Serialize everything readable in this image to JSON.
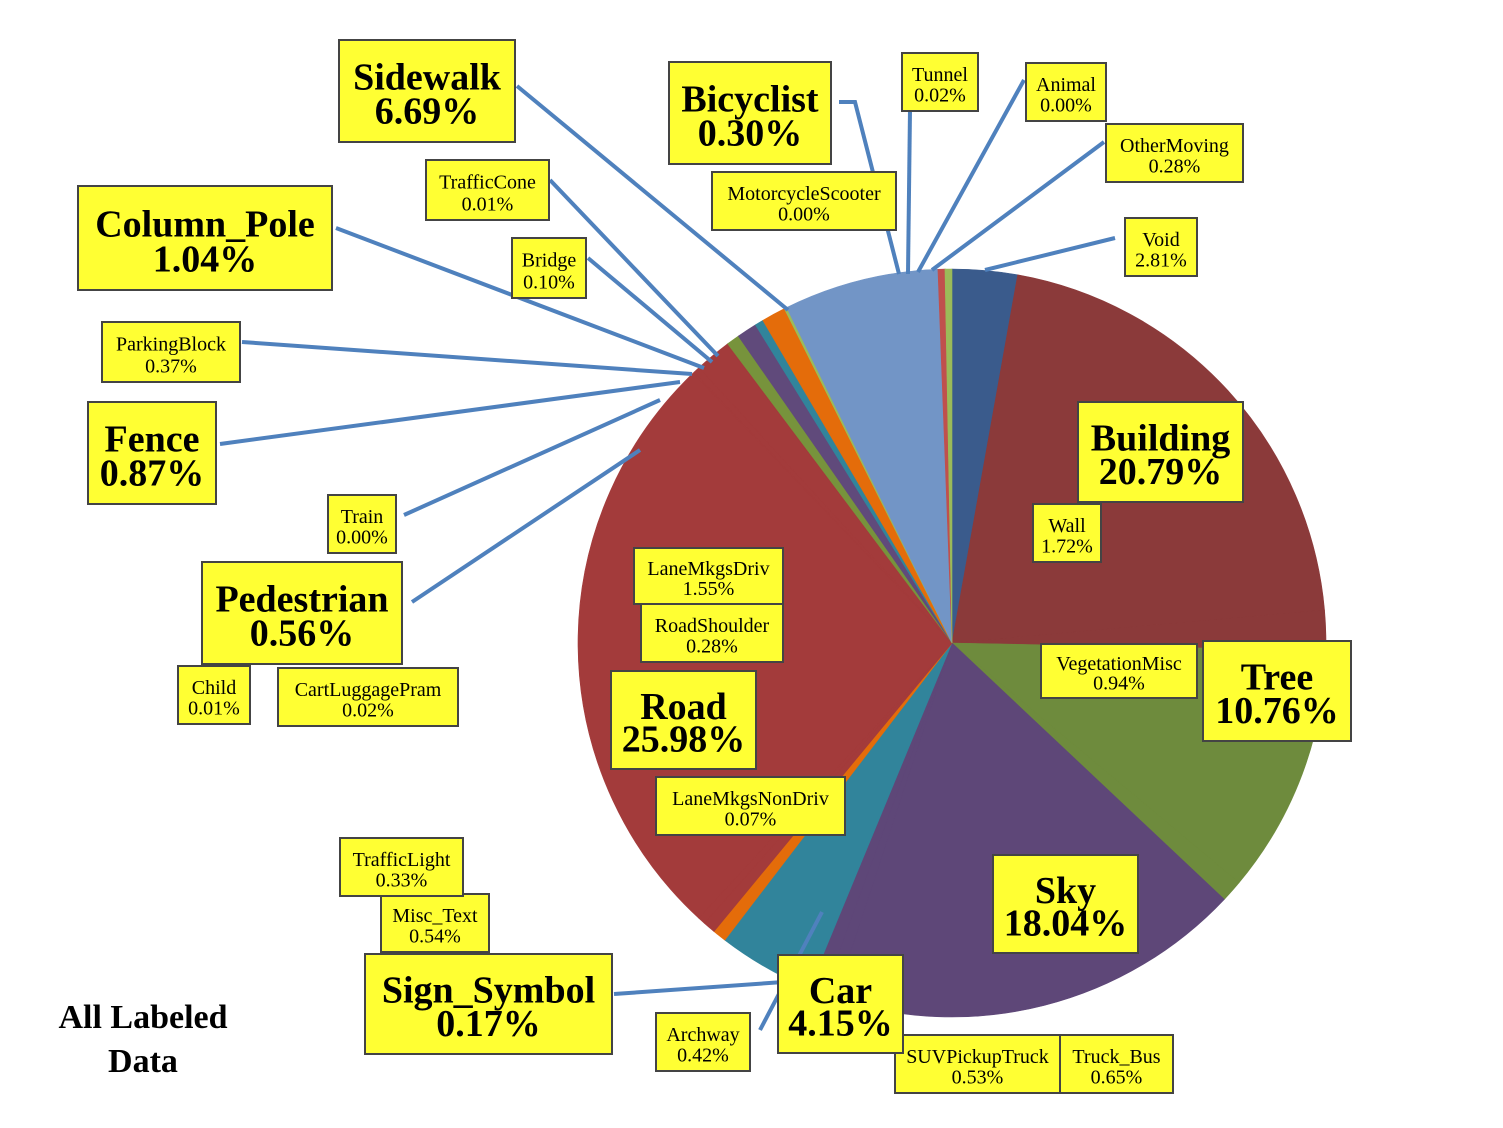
{
  "chart_data": {
    "type": "pie",
    "title": "",
    "caption_lines": [
      "All Labeled",
      "Data"
    ],
    "label_fill": "#ffff33",
    "leader_color": "#4f81bd",
    "slices": [
      {
        "name": "Void",
        "value": 2.81,
        "pct_label": "2.81%",
        "color": "#3a5b8c",
        "label_size": "small"
      },
      {
        "name": "Building",
        "value": 20.79,
        "pct_label": "20.79%",
        "color": "#8b3a3a",
        "label_size": "big"
      },
      {
        "name": "Wall",
        "value": 1.72,
        "pct_label": "1.72%",
        "color": "#8b3a3a",
        "label_size": "small"
      },
      {
        "name": "Tree",
        "value": 10.76,
        "pct_label": "10.76%",
        "color": "#6e8b3d",
        "label_size": "big"
      },
      {
        "name": "VegetationMisc",
        "value": 0.94,
        "pct_label": "0.94%",
        "color": "#6e8b3d",
        "label_size": "small"
      },
      {
        "name": "Sky",
        "value": 18.04,
        "pct_label": "18.04%",
        "color": "#5e4778",
        "label_size": "big"
      },
      {
        "name": "SUVPickupTruck",
        "value": 0.53,
        "pct_label": "0.53%",
        "color": "#5e4778",
        "label_size": "small"
      },
      {
        "name": "Truck_Bus",
        "value": 0.65,
        "pct_label": "0.65%",
        "color": "#5e4778",
        "label_size": "small"
      },
      {
        "name": "Car",
        "value": 4.15,
        "pct_label": "4.15%",
        "color": "#31849b",
        "label_size": "big"
      },
      {
        "name": "Archway",
        "value": 0.42,
        "pct_label": "0.42%",
        "color": "#e46c0a",
        "label_size": "small"
      },
      {
        "name": "Sign_Symbol",
        "value": 0.17,
        "pct_label": "0.17%",
        "color": "#e46c0a",
        "label_size": "big"
      },
      {
        "name": "Misc_Text",
        "value": 0.54,
        "pct_label": "0.54%",
        "color": "#a33b3b",
        "label_size": "small"
      },
      {
        "name": "TrafficLight",
        "value": 0.33,
        "pct_label": "0.33%",
        "color": "#a33b3b",
        "label_size": "small"
      },
      {
        "name": "Road",
        "value": 25.98,
        "pct_label": "25.98%",
        "color": "#a33b3b",
        "label_size": "big"
      },
      {
        "name": "LaneMkgsNonDriv",
        "value": 0.07,
        "pct_label": "0.07%",
        "color": "#a33b3b",
        "label_size": "small"
      },
      {
        "name": "RoadShoulder",
        "value": 0.28,
        "pct_label": "0.28%",
        "color": "#a33b3b",
        "label_size": "small"
      },
      {
        "name": "LaneMkgsDriv",
        "value": 1.55,
        "pct_label": "1.55%",
        "color": "#a33b3b",
        "label_size": "small"
      },
      {
        "name": "CartLuggagePram",
        "value": 0.02,
        "pct_label": "0.02%",
        "color": "#a33b3b",
        "label_size": "small"
      },
      {
        "name": "Child",
        "value": 0.01,
        "pct_label": "0.01%",
        "color": "#a33b3b",
        "label_size": "small"
      },
      {
        "name": "Pedestrian",
        "value": 0.56,
        "pct_label": "0.56%",
        "color": "#77933c",
        "label_size": "big"
      },
      {
        "name": "Train",
        "value": 0.0,
        "pct_label": "0.00%",
        "color": "#77933c",
        "label_size": "small"
      },
      {
        "name": "Fence",
        "value": 0.87,
        "pct_label": "0.87%",
        "color": "#604a7b",
        "label_size": "big"
      },
      {
        "name": "ParkingBlock",
        "value": 0.37,
        "pct_label": "0.37%",
        "color": "#31849b",
        "label_size": "small"
      },
      {
        "name": "Column_Pole",
        "value": 1.04,
        "pct_label": "1.04%",
        "color": "#e46c0a",
        "label_size": "big"
      },
      {
        "name": "Bridge",
        "value": 0.1,
        "pct_label": "0.10%",
        "color": "#9bbb59",
        "label_size": "small"
      },
      {
        "name": "TrafficCone",
        "value": 0.01,
        "pct_label": "0.01%",
        "color": "#9bbb59",
        "label_size": "small"
      },
      {
        "name": "Sidewalk",
        "value": 6.69,
        "pct_label": "6.69%",
        "color": "#7295c6",
        "label_size": "big"
      },
      {
        "name": "Bicyclist",
        "value": 0.3,
        "pct_label": "0.30%",
        "color": "#c0504d",
        "label_size": "big"
      },
      {
        "name": "MotorcycleScooter",
        "value": 0.0,
        "pct_label": "0.00%",
        "color": "#c0504d",
        "label_size": "small"
      },
      {
        "name": "Tunnel",
        "value": 0.02,
        "pct_label": "0.02%",
        "color": "#9bbb59",
        "label_size": "small"
      },
      {
        "name": "Animal",
        "value": 0.0,
        "pct_label": "0.00%",
        "color": "#9bbb59",
        "label_size": "small"
      },
      {
        "name": "OtherMoving",
        "value": 0.28,
        "pct_label": "0.28%",
        "color": "#9bbb59",
        "label_size": "small"
      }
    ]
  }
}
